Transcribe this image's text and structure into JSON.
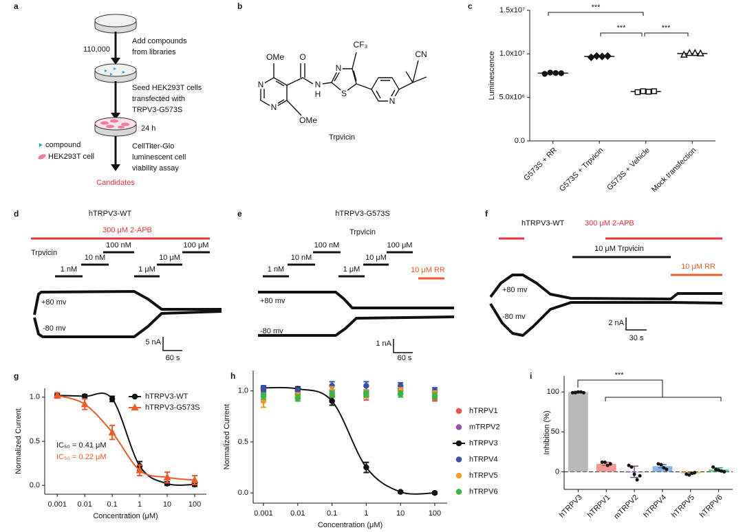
{
  "panels": {
    "a": {
      "label": "a",
      "count": "110,000",
      "steps": [
        [
          "Add compounds",
          "from libraries"
        ],
        [
          "Seed HEK293T cells",
          "transfected with",
          "TRPV3-G573S"
        ],
        [
          "CellTiter-Glo",
          "luminescent cell",
          "viability assay"
        ]
      ],
      "time": "24 h",
      "legend": [
        "compound",
        "HEK293T cell"
      ],
      "result": "Candidates"
    },
    "b": {
      "label": "b",
      "atoms": [
        "OMe",
        "O",
        "N",
        "H",
        "N",
        "S",
        "CF₃",
        "CN",
        "N",
        "N",
        "N",
        "OMe"
      ],
      "name": "Trpvicin"
    },
    "c": {
      "label": "c",
      "type": "dot",
      "ylabel": "Luminescence",
      "categories": [
        "G573S + RR",
        "G573S + Trpvicin",
        "G573S + Vehicle",
        "Mock transfection"
      ],
      "groups": [
        {
          "marker": "circle",
          "filled": true,
          "values": [
            7700000,
            7850000,
            7800000,
            7780000
          ]
        },
        {
          "marker": "diamond",
          "filled": true,
          "values": [
            9600000,
            9750000,
            9700000,
            9750000
          ]
        },
        {
          "marker": "square",
          "filled": false,
          "values": [
            5600000,
            5700000,
            5650000,
            5700000
          ]
        },
        {
          "marker": "triangle",
          "filled": false,
          "values": [
            9900000,
            10100000,
            10100000,
            10050000
          ]
        }
      ],
      "ylim": [
        0,
        15000000
      ],
      "yticks": [
        {
          "value": 0,
          "label": "0.0"
        },
        {
          "value": 5000000,
          "label": "5.0x10⁶"
        },
        {
          "value": 10000000,
          "label": "1.0x10⁷"
        },
        {
          "value": 15000000,
          "label": "1.5x10⁷"
        }
      ],
      "significance": [
        "***",
        "***",
        "***"
      ]
    },
    "d": {
      "label": "d",
      "title": "hTRPV3-WT",
      "agonist": "300 μM 2-APB",
      "drug": "Trpvicin",
      "doses": [
        "1 nM",
        "10 nM",
        "100 nM",
        "1 μM",
        "10 μM",
        "100 μM"
      ],
      "voltages": [
        "+80 mv",
        "-80 mv"
      ],
      "scale": [
        "5 nA",
        "60 s"
      ]
    },
    "e": {
      "label": "e",
      "title": "hTRPV3-G573S",
      "drug": "Trpvicin",
      "doses": [
        "1 nM",
        "10 nM",
        "100 nM",
        "1 μM",
        "10 μM",
        "100 μM"
      ],
      "blocker": "10 μM RR",
      "voltages": [
        "+80 mv",
        "-80 mv"
      ],
      "scale": [
        "1 nA",
        "60 s"
      ]
    },
    "f": {
      "label": "f",
      "title": "hTRPV3-WT",
      "agonist": "300 μM 2-APB",
      "drug": "10 μM Trpvicin",
      "blocker": "10 μM RR",
      "voltages": [
        "+80 mv",
        "-80 mv"
      ],
      "scale": [
        "2 nA",
        "30 s"
      ]
    },
    "g": {
      "label": "g",
      "type": "line",
      "xlabel": "Concentration (μM)",
      "ylabel": "Normalized Current",
      "log_x": true,
      "x": [
        0.001,
        0.01,
        0.1,
        1,
        10,
        100
      ],
      "series": [
        {
          "name": "hTRPV3-WT",
          "color": "#111111",
          "marker": "circle",
          "line": true,
          "values": [
            1.02,
            1.01,
            0.98,
            0.22,
            0.02,
            0.01
          ],
          "errors": [
            0.02,
            0.02,
            0.03,
            0.05,
            0.02,
            0.02
          ]
        },
        {
          "name": "hTRPV3-G573S",
          "color": "#f05a28",
          "marker": "triangle",
          "line": true,
          "values": [
            1.02,
            0.92,
            0.6,
            0.17,
            0.09,
            0.06
          ],
          "errors": [
            0.03,
            0.06,
            0.08,
            0.06,
            0.06,
            0.05
          ]
        }
      ],
      "annotations": [
        {
          "text": "IC₅₀ = 0.41 μM",
          "color": "#111111"
        },
        {
          "text": "IC₅₀ = 0.22 μM",
          "color": "#f05a28"
        }
      ],
      "xlim": [
        0.00035,
        266
      ],
      "xticks": [
        0.001,
        0.01,
        0.1,
        1,
        10,
        100
      ],
      "ylim": [
        -0.1,
        1.1
      ],
      "yticks": [
        {
          "value": 0,
          "label": "0.0"
        },
        {
          "value": 0.5,
          "label": "0.5"
        },
        {
          "value": 1,
          "label": "1.0"
        }
      ]
    },
    "h": {
      "label": "h",
      "type": "line",
      "xlabel": "Concentration (μM)",
      "ylabel": "Normalized Current",
      "log_x": true,
      "x": [
        0.001,
        0.01,
        0.1,
        1,
        10,
        100
      ],
      "series": [
        {
          "name": "hTRPV1",
          "color": "#e8534f",
          "marker": "circle",
          "line": false,
          "values": [
            1.0,
            0.97,
            0.95,
            0.95,
            1.0,
            0.93
          ],
          "errors": [
            0.03,
            0.03,
            0.04,
            0.04,
            0.03,
            0.03
          ]
        },
        {
          "name": "mTRPV2",
          "color": "#9b4fb0",
          "marker": "circle",
          "line": false,
          "values": [
            0.97,
            0.95,
            0.97,
            0.98,
            1.02,
            1.0
          ],
          "errors": [
            0.03,
            0.03,
            0.03,
            0.03,
            0.03,
            0.03
          ]
        },
        {
          "name": "hTRPV3",
          "color": "#111111",
          "marker": "circle",
          "line": true,
          "values": [
            1.03,
            1.02,
            0.9,
            0.25,
            0.01,
            0.0
          ],
          "errors": [
            0.02,
            0.02,
            0.04,
            0.05,
            0.01,
            0.01
          ]
        },
        {
          "name": "hTRPV4",
          "color": "#3a4fa8",
          "marker": "circle",
          "line": false,
          "values": [
            1.02,
            1.0,
            1.05,
            1.05,
            1.05,
            1.0
          ],
          "errors": [
            0.03,
            0.03,
            0.04,
            0.04,
            0.03,
            0.03
          ]
        },
        {
          "name": "hTRPV5",
          "color": "#f39c2c",
          "marker": "circle",
          "line": false,
          "values": [
            0.9,
            0.95,
            1.0,
            0.97,
            1.0,
            0.97
          ],
          "errors": [
            0.06,
            0.03,
            0.04,
            0.04,
            0.03,
            0.03
          ]
        },
        {
          "name": "hTRPV6",
          "color": "#3bb54a",
          "marker": "circle",
          "line": false,
          "values": [
            0.95,
            0.93,
            0.97,
            0.97,
            0.97,
            0.95
          ],
          "errors": [
            0.03,
            0.03,
            0.03,
            0.03,
            0.03,
            0.03
          ]
        }
      ],
      "xlim": [
        0.0005,
        230
      ],
      "xticks": [
        0.001,
        0.01,
        0.1,
        1,
        10,
        100
      ],
      "ylim": [
        -0.1,
        1.2
      ],
      "yticks": [
        {
          "value": 0,
          "label": "0.0"
        },
        {
          "value": 0.5,
          "label": "0.5"
        },
        {
          "value": 1,
          "label": "1.0"
        }
      ]
    },
    "i": {
      "label": "i",
      "type": "bar",
      "ylabel": "Inhibition (%)",
      "categories": [
        "hTRPV3",
        "hTRPV1",
        "mTRPV2",
        "hTRPV4",
        "hTRPV5",
        "hTRPV6"
      ],
      "values": [
        100,
        10,
        0,
        7,
        -2,
        3
      ],
      "errors": [
        1,
        2,
        7,
        2,
        1,
        2
      ],
      "points": [
        [
          99,
          99,
          100,
          100,
          99
        ],
        [
          12,
          12,
          8,
          10
        ],
        [
          8,
          6,
          -3,
          -10,
          -5
        ],
        [
          10,
          9,
          5,
          3
        ],
        [
          -3,
          -4,
          -2,
          -1
        ],
        [
          6,
          3,
          2,
          1,
          0
        ]
      ],
      "colors": [
        "#a8a8a8",
        "#f07f7a",
        "#a776c2",
        "#6b9fe0",
        "#f6a94f",
        "#45c07a"
      ],
      "ylim": [
        -22,
        120
      ],
      "yticks": [
        0,
        50,
        100
      ],
      "significance": "***"
    }
  }
}
